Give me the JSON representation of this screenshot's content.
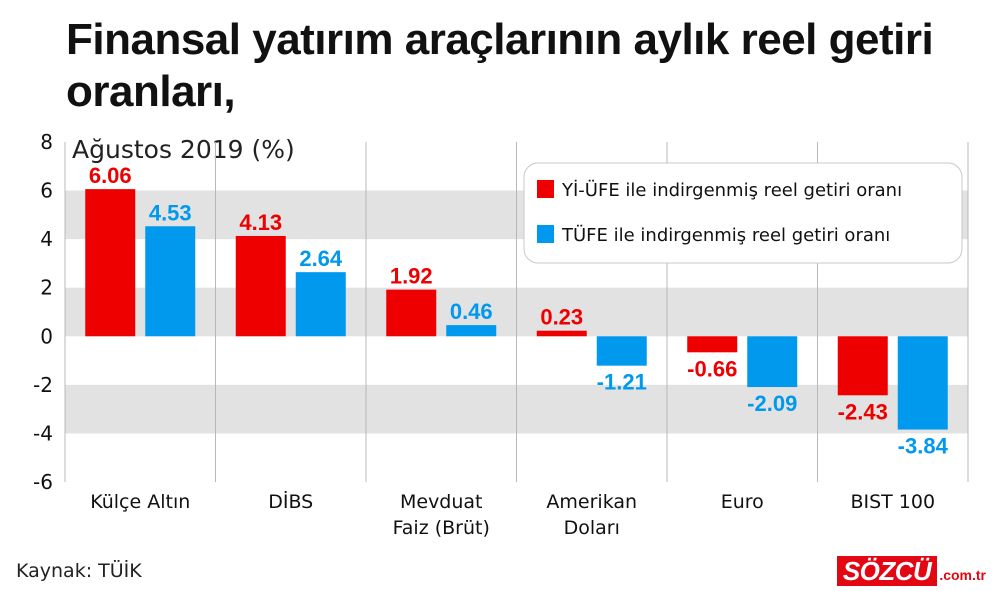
{
  "title": "Finansal yatırım araçlarının aylık reel getiri oranları,",
  "subtitle": "Ağustos 2019 (%)",
  "source": "Kaynak: TÜİK",
  "brand": {
    "name": "SÖZCÜ",
    "domain": ".com.tr"
  },
  "colors": {
    "series1": "#ee0000",
    "series2": "#0099ee",
    "band": "#e2e2e2"
  },
  "chart_data": {
    "type": "bar",
    "categories": [
      [
        "Külçe Altın"
      ],
      [
        "DİBS"
      ],
      [
        "Mevduat",
        "Faiz (Brüt)"
      ],
      [
        "Amerikan",
        "Doları"
      ],
      [
        "Euro"
      ],
      [
        "BIST 100"
      ]
    ],
    "series": [
      {
        "name": "Yİ-ÜFE ile indirgenmiş reel getiri oranı",
        "values": [
          6.06,
          4.13,
          1.92,
          0.23,
          -0.66,
          -2.43
        ]
      },
      {
        "name": "TÜFE ile indirgenmiş reel getiri oranı",
        "values": [
          4.53,
          2.64,
          0.46,
          -1.21,
          -2.09,
          -3.84
        ]
      }
    ],
    "value_labels": [
      [
        "6.06",
        "4.13",
        "1.92",
        "0.23",
        "-0.66",
        "-2.43"
      ],
      [
        "4.53",
        "2.64",
        "0.46",
        "-1.21",
        "-2.09",
        "-3.84"
      ]
    ],
    "yticks": [
      "8",
      "6",
      "4",
      "2",
      "0",
      "-2",
      "-4",
      "-6"
    ],
    "ylim": [
      -6,
      8
    ],
    "grid": "alternating horizontal bands",
    "legend_position": "top-right"
  }
}
